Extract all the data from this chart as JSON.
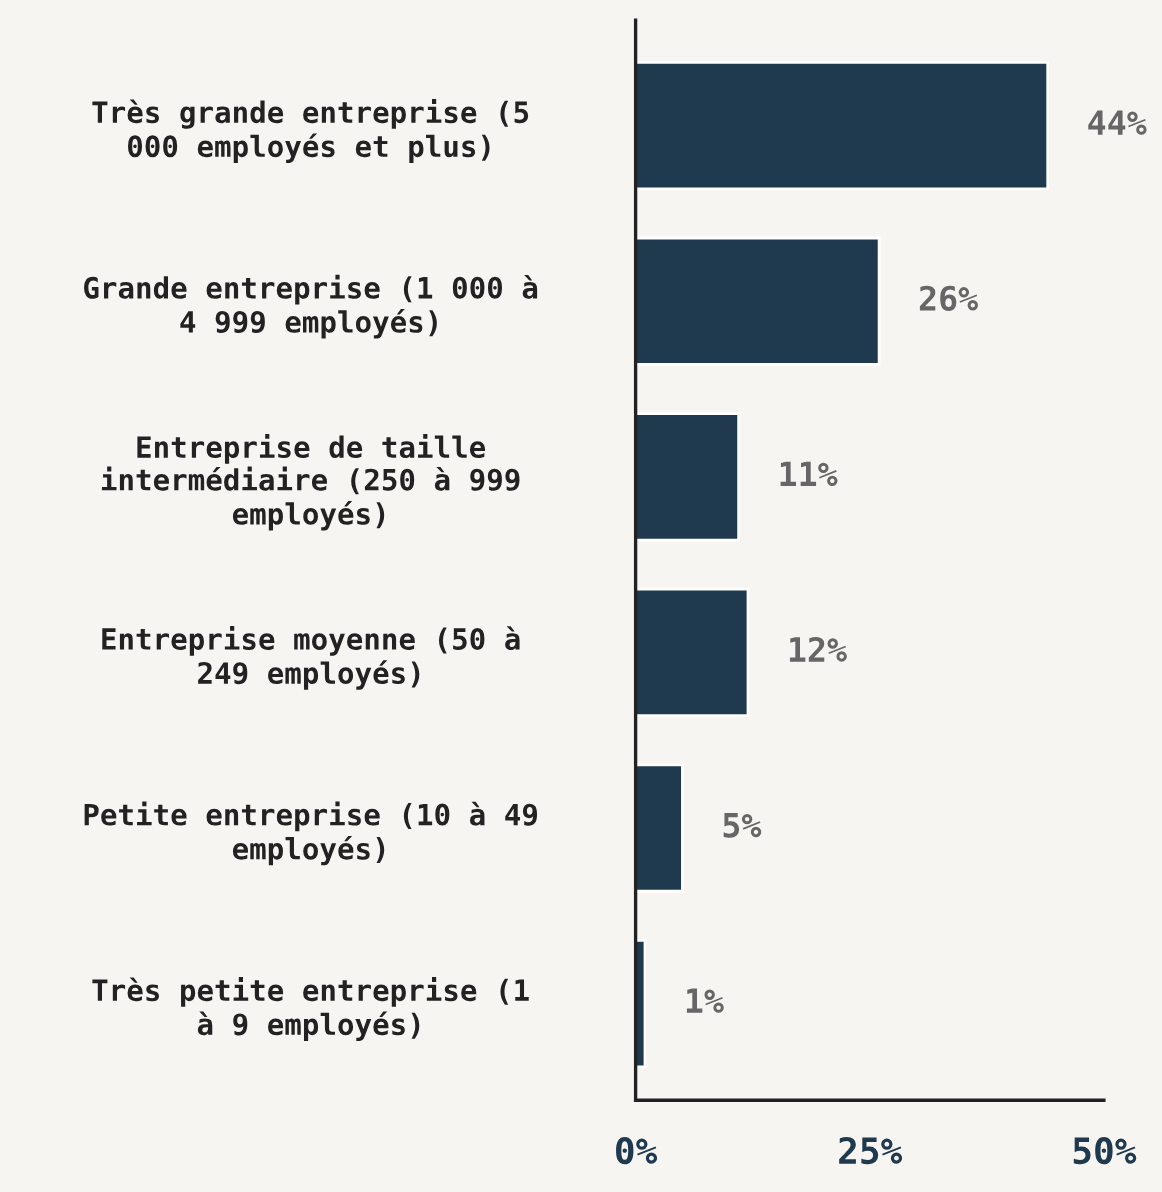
{
  "chart_data": {
    "type": "bar",
    "orientation": "horizontal",
    "categories": [
      "Très grande entreprise (5\n000 employés et plus)",
      "Grande entreprise (1 000 à\n4 999 employés)",
      "Entreprise de taille\nintermédiaire (250 à 999\nemployés)",
      "Entreprise moyenne (50 à\n249 employés)",
      "Petite entreprise (10 à 49\nemployés)",
      "Très petite entreprise (1\nà 9 employés)"
    ],
    "values": [
      44,
      26,
      11,
      12,
      5,
      1
    ],
    "value_labels": [
      "44%",
      "26%",
      "11%",
      "12%",
      "5%",
      "1%"
    ],
    "color": "#1f3a4f",
    "xlim": [
      0,
      50
    ],
    "xticks": [
      {
        "value": 0,
        "label": "0%"
      },
      {
        "value": 25,
        "label": "25%"
      },
      {
        "value": 50,
        "label": "50%"
      }
    ],
    "grid": false,
    "legend": false
  }
}
